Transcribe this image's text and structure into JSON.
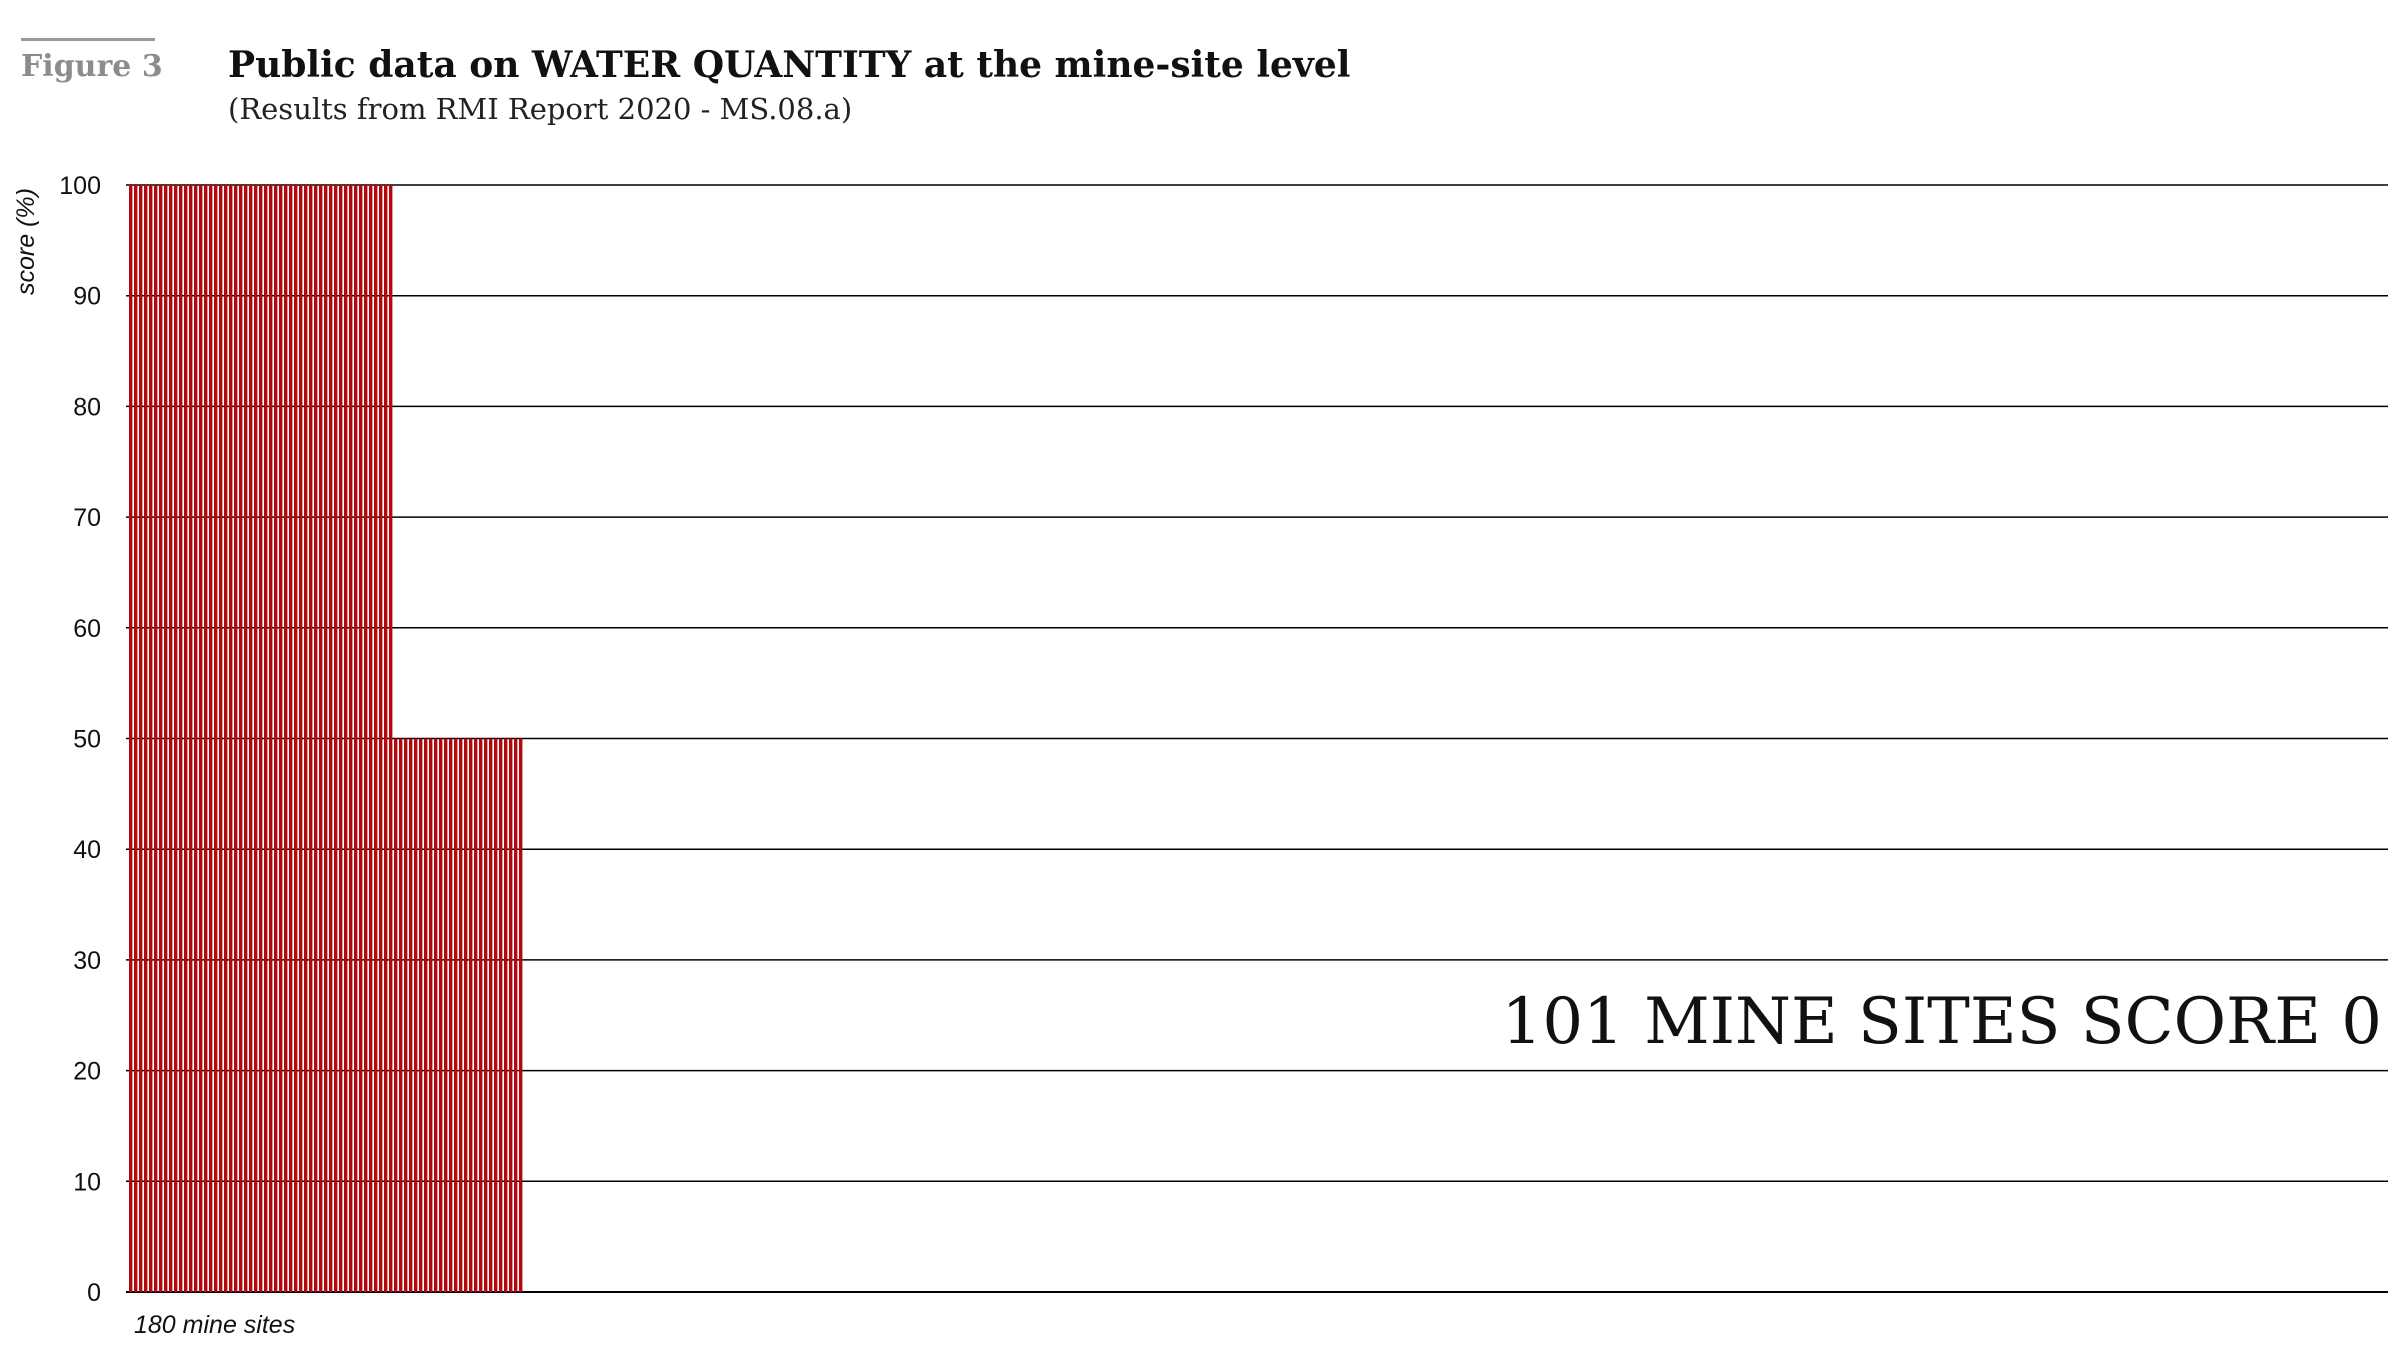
{
  "figure_label": "Figure 3",
  "title": "Public data on WATER QUANTITY at the mine-site level",
  "subtitle": "(Results from RMI Report 2020 - MS.08.a)",
  "colors": {
    "bar": "#b3080c",
    "grid": "#000000"
  },
  "chart_data": {
    "type": "bar",
    "title": "Public data on WATER QUANTITY at the mine-site level",
    "subtitle": "(Results from RMI Report 2020 - MS.08.a)",
    "ylabel": "score (%)",
    "xlabel": "180 mine sites",
    "ylim": [
      0,
      100
    ],
    "yticks": [
      0,
      10,
      20,
      30,
      40,
      50,
      60,
      70,
      80,
      90,
      100
    ],
    "grid": true,
    "total_sites": 180,
    "groups": [
      {
        "score": 100,
        "count": 53
      },
      {
        "score": 50,
        "count": 26
      },
      {
        "score": 0,
        "count": 101
      }
    ],
    "annotation": "101 MINE SITES SCORE 0"
  }
}
